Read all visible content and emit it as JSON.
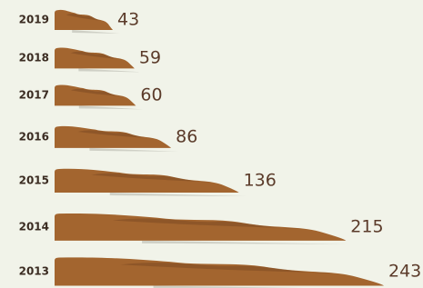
{
  "chart_data": {
    "type": "bar",
    "orientation": "horizontal",
    "categories": [
      "2019",
      "2018",
      "2017",
      "2016",
      "2015",
      "2014",
      "2013"
    ],
    "values": [
      43,
      59,
      60,
      86,
      136,
      215,
      243
    ],
    "color": "#a3652f"
  }
}
